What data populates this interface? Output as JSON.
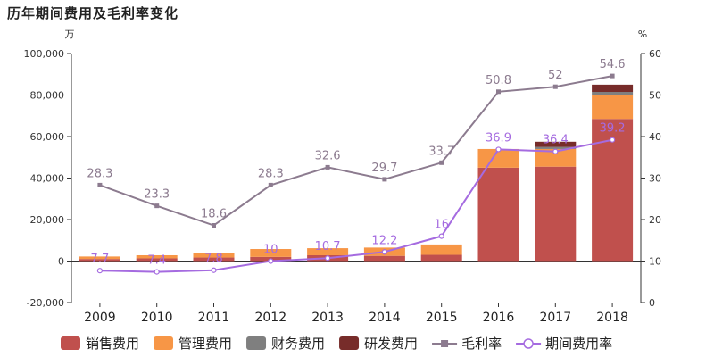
{
  "chart_data": {
    "type": "bar",
    "title": "历年期间费用及毛利率变化",
    "ylabel": "万",
    "y2label": "%",
    "categories": [
      "2009",
      "2010",
      "2011",
      "2012",
      "2013",
      "2014",
      "2015",
      "2016",
      "2017",
      "2018"
    ],
    "ylim": [
      -20000,
      100000
    ],
    "yticks": [
      -20000,
      0,
      20000,
      40000,
      60000,
      80000,
      100000
    ],
    "ytick_labels": [
      "-20,000",
      "0",
      "20,000",
      "40,000",
      "60,000",
      "80,000",
      "100,000"
    ],
    "y2lim": [
      0,
      60
    ],
    "y2ticks": [
      0,
      10,
      20,
      30,
      40,
      50,
      60
    ],
    "grid": false,
    "legend_position": "bottom",
    "series": [
      {
        "name": "销售费用",
        "kind": "bar",
        "axis": "left",
        "color": "#c0504d",
        "values": [
          1000,
          1300,
          1700,
          2000,
          2800,
          2500,
          3000,
          45000,
          45500,
          68500
        ]
      },
      {
        "name": "管理费用",
        "kind": "bar",
        "axis": "left",
        "color": "#f79646",
        "values": [
          1200,
          1500,
          2000,
          3800,
          3400,
          4000,
          5000,
          9000,
          8500,
          11500
        ]
      },
      {
        "name": "财务费用",
        "kind": "bar",
        "axis": "left",
        "color": "#7f7f7f",
        "values": [
          0,
          0,
          0,
          0,
          0,
          0,
          0,
          0,
          1000,
          1500
        ]
      },
      {
        "name": "研发费用",
        "kind": "bar",
        "axis": "left",
        "color": "#772c2a",
        "values": [
          0,
          0,
          0,
          0,
          0,
          0,
          0,
          0,
          2500,
          3500
        ]
      },
      {
        "name": "毛利率",
        "kind": "line",
        "axis": "right",
        "color": "#8c7b8f",
        "marker": "square",
        "values": [
          28.3,
          23.3,
          18.6,
          28.3,
          32.6,
          29.7,
          33.7,
          50.8,
          52,
          54.6
        ],
        "labels": [
          "28.3",
          "23.3",
          "18.6",
          "28.3",
          "32.6",
          "29.7",
          "33.7",
          "50.8",
          "52",
          "54.6"
        ]
      },
      {
        "name": "期间费用率",
        "kind": "line",
        "axis": "right",
        "color": "#a56be0",
        "marker": "circle",
        "values": [
          7.7,
          7.4,
          7.8,
          10,
          10.7,
          12.2,
          16,
          36.9,
          36.4,
          39.2
        ],
        "labels": [
          "7.7",
          "7.4",
          "7.8",
          "10",
          "10.7",
          "12.2",
          "16",
          "36.9",
          "36.4",
          "39.2"
        ]
      }
    ]
  }
}
